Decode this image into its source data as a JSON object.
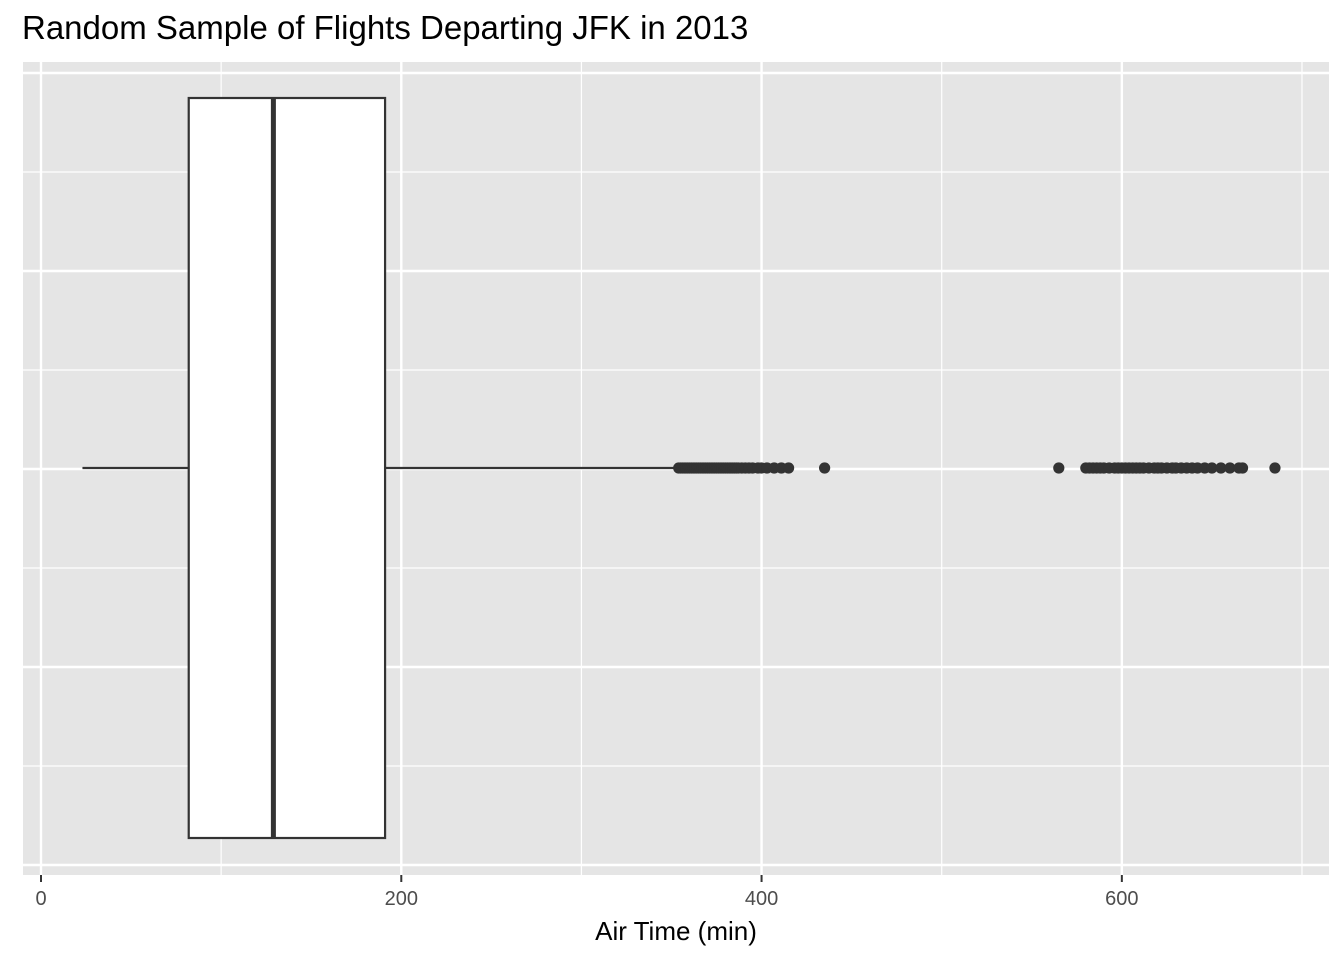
{
  "chart_data": {
    "type": "boxplot",
    "title": "Random Sample of Flights Departing JFK in 2013",
    "xlabel": "Air Time (min)",
    "ylabel": "",
    "orientation": "horizontal",
    "xlim": [
      -10,
      715
    ],
    "x_ticks": [
      0,
      200,
      400,
      600
    ],
    "x_tick_labels": [
      "0",
      "200",
      "400",
      "600"
    ],
    "grid": true,
    "colors": {
      "panel_background": "#e5e5e5",
      "grid": "#ffffff",
      "box_fill": "#ffffff",
      "box_line": "#333333",
      "outlier": "#333333"
    },
    "box": {
      "whisker_low": 23,
      "q1": 82,
      "median": 129,
      "q3": 191,
      "whisker_high": 353
    },
    "outliers": [
      354,
      355,
      356,
      357,
      358,
      359,
      360,
      361,
      362,
      363,
      364,
      365,
      366,
      367,
      368,
      369,
      370,
      371,
      372,
      373,
      374,
      375,
      376,
      377,
      378,
      379,
      380,
      381,
      382,
      383,
      384,
      385,
      386,
      387,
      389,
      391,
      393,
      395,
      398,
      400,
      403,
      407,
      411,
      415,
      435,
      565,
      580,
      582,
      584,
      586,
      588,
      590,
      593,
      596,
      598,
      600,
      602,
      604,
      606,
      608,
      610,
      612,
      615,
      618,
      620,
      622,
      625,
      628,
      630,
      633,
      636,
      639,
      642,
      646,
      650,
      655,
      660,
      665,
      667,
      685
    ]
  }
}
